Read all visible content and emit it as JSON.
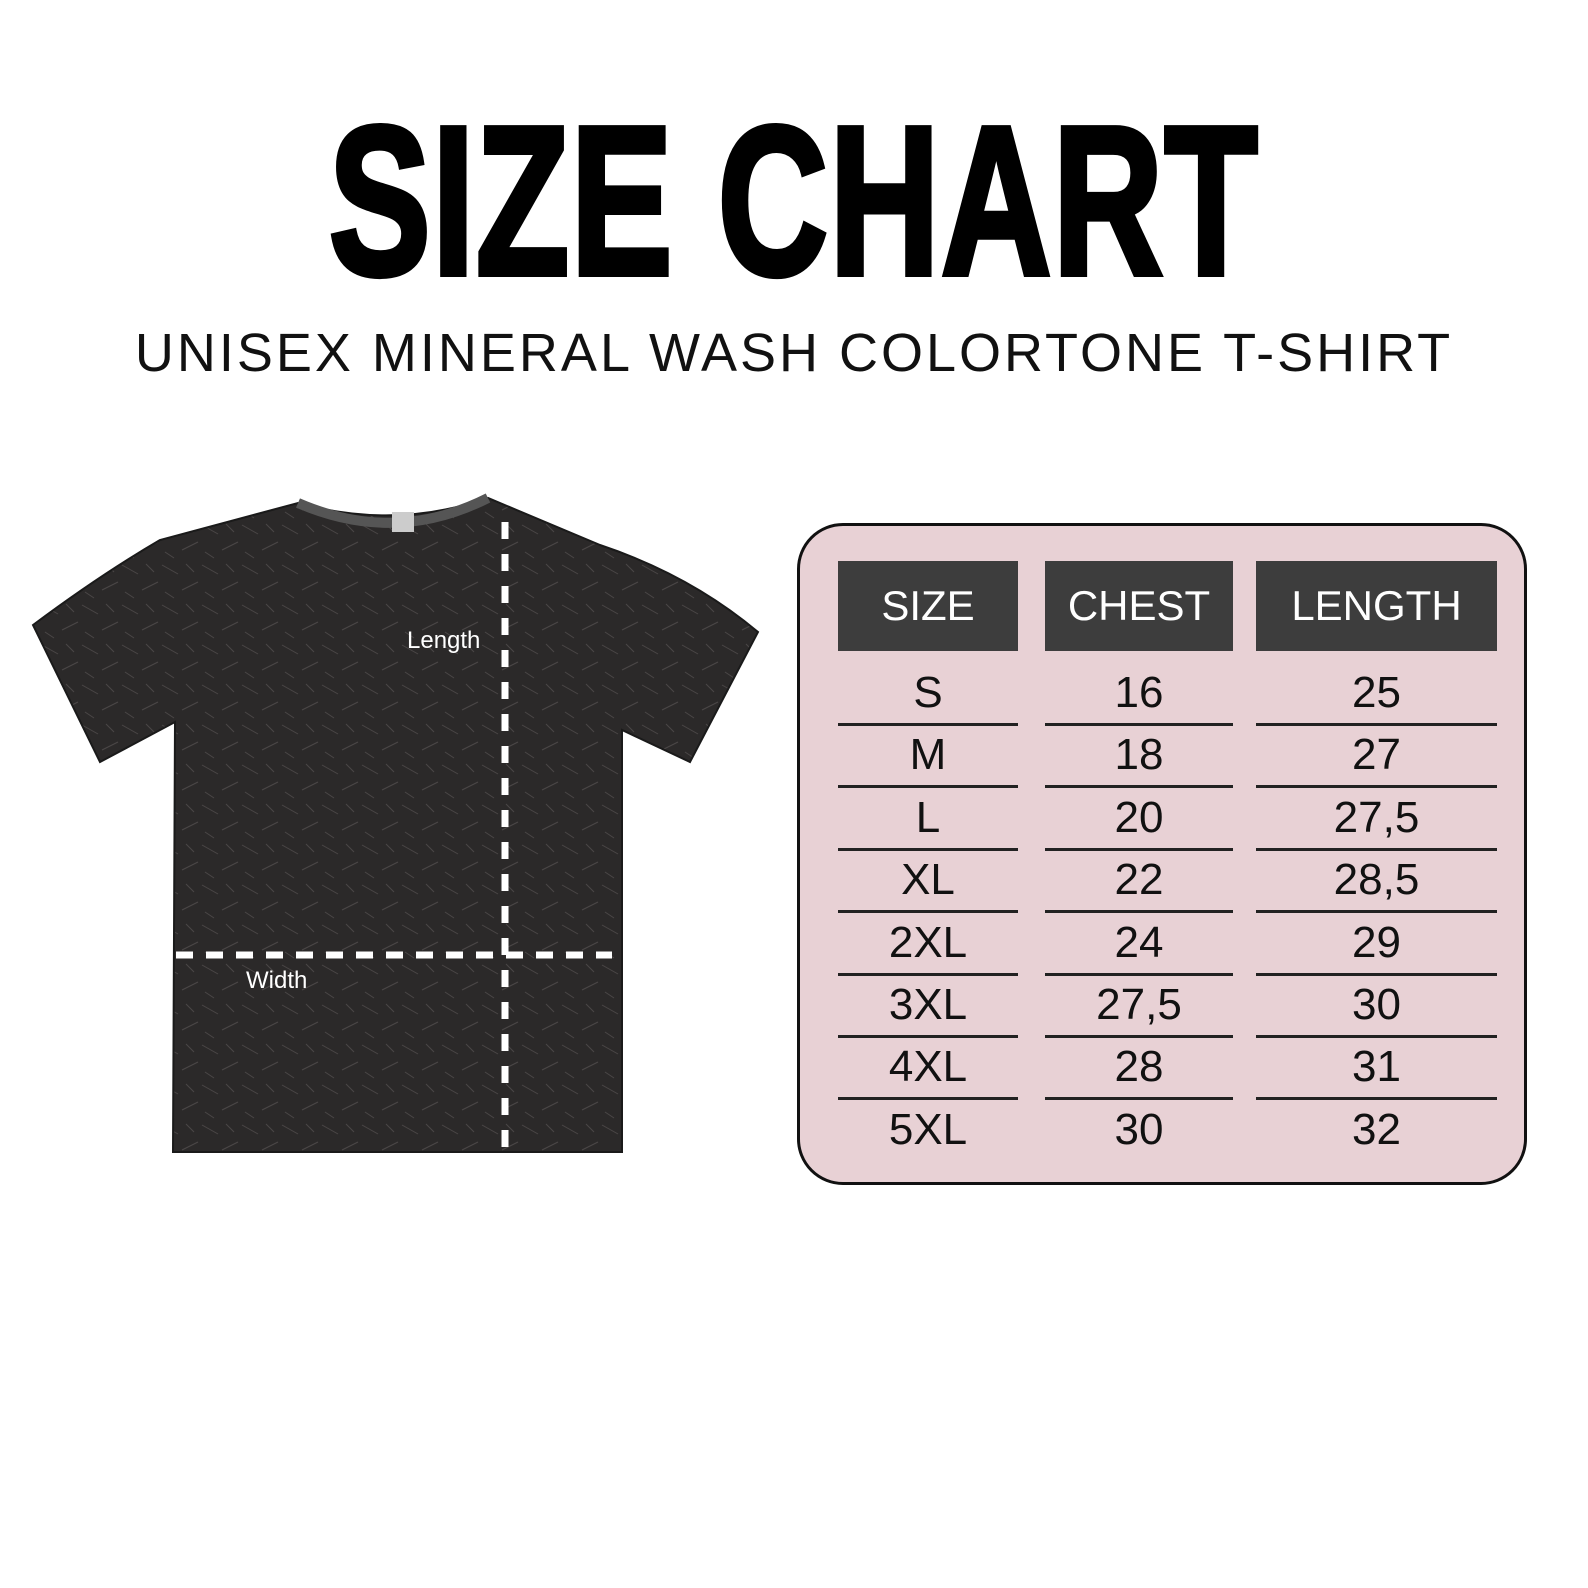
{
  "title": "SIZE CHART",
  "subtitle": "UNISEX MINERAL WASH COLORTONE T-SHIRT",
  "diagram": {
    "length_label": "Length",
    "width_label": "Width"
  },
  "colors": {
    "panel_bg": "#e8d1d5",
    "header_bg": "#3d3d3d",
    "shirt": "#2a2828"
  },
  "table": {
    "headers": [
      "SIZE",
      "CHEST",
      "LENGTH"
    ],
    "rows": [
      [
        "S",
        "16",
        "25"
      ],
      [
        "M",
        "18",
        "27"
      ],
      [
        "L",
        "20",
        "27,5"
      ],
      [
        "XL",
        "22",
        "28,5"
      ],
      [
        "2XL",
        "24",
        "29"
      ],
      [
        "3XL",
        "27,5",
        "30"
      ],
      [
        "4XL",
        "28",
        "31"
      ],
      [
        "5XL",
        "30",
        "32"
      ]
    ]
  }
}
